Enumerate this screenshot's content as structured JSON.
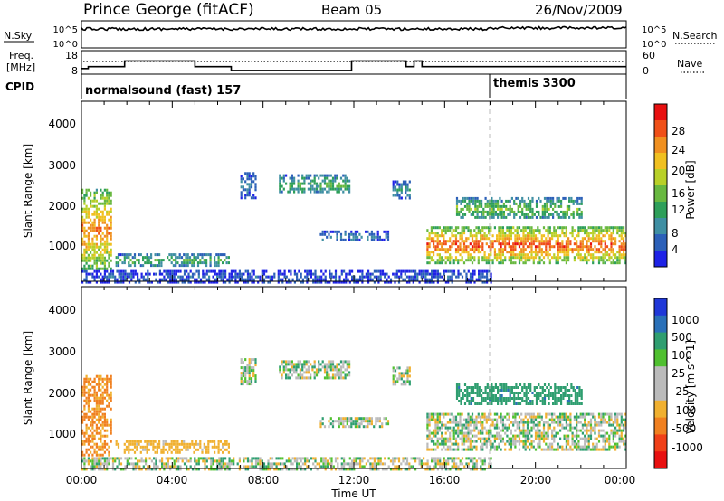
{
  "header": {
    "station": "Prince George (fitACF)",
    "beam": "Beam 05",
    "date": "26/Nov/2009"
  },
  "noise_panel": {
    "left_label": "N.Sky",
    "left_ticks": [
      "10^5",
      "10^0"
    ],
    "right_label": "N.Search",
    "right_ticks": [
      "10^5",
      "10^0"
    ]
  },
  "freq_panel": {
    "left_label_top": "Freq.",
    "left_label_bottom": "[MHz]",
    "left_ticks": [
      "18",
      "8"
    ],
    "right_label": "Nave",
    "right_ticks": [
      "60",
      "0"
    ]
  },
  "cpid_panel": {
    "label": "CPID",
    "modes": [
      {
        "name": "normalsound (fast) 157"
      },
      {
        "name": "themis 3300"
      }
    ]
  },
  "x_axis": {
    "title": "Time UT",
    "ticks": [
      "00:00",
      "04:00",
      "08:00",
      "12:00",
      "16:00",
      "20:00",
      "00:00"
    ]
  },
  "power_panel": {
    "ylabel": "Slant Range [km]",
    "yticks": [
      "1000",
      "2000",
      "3000",
      "4000"
    ],
    "colorbar": {
      "label": "Power [dB]",
      "ticks": [
        "4",
        "8",
        "12",
        "16",
        "20",
        "24",
        "28"
      ],
      "colors": [
        "#1e22e6",
        "#2c60b8",
        "#3f8fa3",
        "#2e9f5a",
        "#68b840",
        "#b8d028",
        "#f0c020",
        "#f09020",
        "#f05018",
        "#e81010"
      ]
    }
  },
  "velocity_panel": {
    "ylabel": "Slant Range [km]",
    "yticks": [
      "1000",
      "2000",
      "3000",
      "4000"
    ],
    "colorbar": {
      "label": "Velocity [m s^-1]",
      "ticks": [
        "1000",
        "500",
        "100",
        "25",
        "-25",
        "-100",
        "-500",
        "-1000"
      ],
      "colors": [
        "#2038d8",
        "#2a70b8",
        "#2f9e70",
        "#50c030",
        "#bbbbbb",
        "#bbbbbb",
        "#f0b030",
        "#f08020",
        "#f04018",
        "#e81010"
      ]
    }
  },
  "chart_data": {
    "type": "heatmap",
    "x_range_hours": [
      0,
      24
    ],
    "y_range_km": [
      180,
      4500
    ],
    "mode_change_hour": 18.05,
    "frequency_segments_mhz": [
      {
        "start": 0.0,
        "end": 0.3,
        "value": 10
      },
      {
        "start": 0.3,
        "end": 1.9,
        "value": 11
      },
      {
        "start": 1.9,
        "end": 5.0,
        "value": 14
      },
      {
        "start": 5.0,
        "end": 6.6,
        "value": 11
      },
      {
        "start": 6.6,
        "end": 11.9,
        "value": 9
      },
      {
        "start": 11.9,
        "end": 14.3,
        "value": 14
      },
      {
        "start": 14.3,
        "end": 14.65,
        "value": 11
      },
      {
        "start": 14.65,
        "end": 15.0,
        "value": 14
      },
      {
        "start": 15.0,
        "end": 24.0,
        "value": 11
      }
    ],
    "echo_regions": [
      {
        "region": "near-range ground scatter",
        "start_h": 0.0,
        "end_h": 18.0,
        "range_km": [
          180,
          450
        ]
      },
      {
        "region": "early echoes",
        "start_h": 0.0,
        "end_h": 1.3,
        "range_km": [
          500,
          2400
        ],
        "power_db": 22,
        "velocity_ms": -350
      },
      {
        "region": "morning band",
        "start_h": 1.5,
        "end_h": 6.5,
        "range_km": [
          570,
          850
        ],
        "power_db": 11,
        "velocity_ms": -150
      },
      {
        "region": "patch",
        "start_h": 7.0,
        "end_h": 7.7,
        "range_km": [
          2200,
          2800
        ],
        "power_db": 6,
        "velocity_ms": 0
      },
      {
        "region": "patch",
        "start_h": 8.7,
        "end_h": 11.8,
        "range_km": [
          2300,
          2750
        ],
        "power_db": 11,
        "velocity_ms": 0
      },
      {
        "region": "patch",
        "start_h": 10.5,
        "end_h": 13.5,
        "range_km": [
          1150,
          1400
        ],
        "power_db": 6,
        "velocity_ms": 0
      },
      {
        "region": "patch",
        "start_h": 13.7,
        "end_h": 14.5,
        "range_km": [
          2200,
          2600
        ],
        "power_db": 8,
        "velocity_ms": 0
      },
      {
        "region": "evening main band",
        "start_h": 15.2,
        "end_h": 24.0,
        "range_km": [
          650,
          1500
        ],
        "power_db": 24,
        "velocity_ms": 0
      },
      {
        "region": "evening upper band",
        "start_h": 16.5,
        "end_h": 22.0,
        "range_km": [
          1700,
          2200
        ],
        "power_db": 13,
        "velocity_ms": 200
      }
    ]
  }
}
